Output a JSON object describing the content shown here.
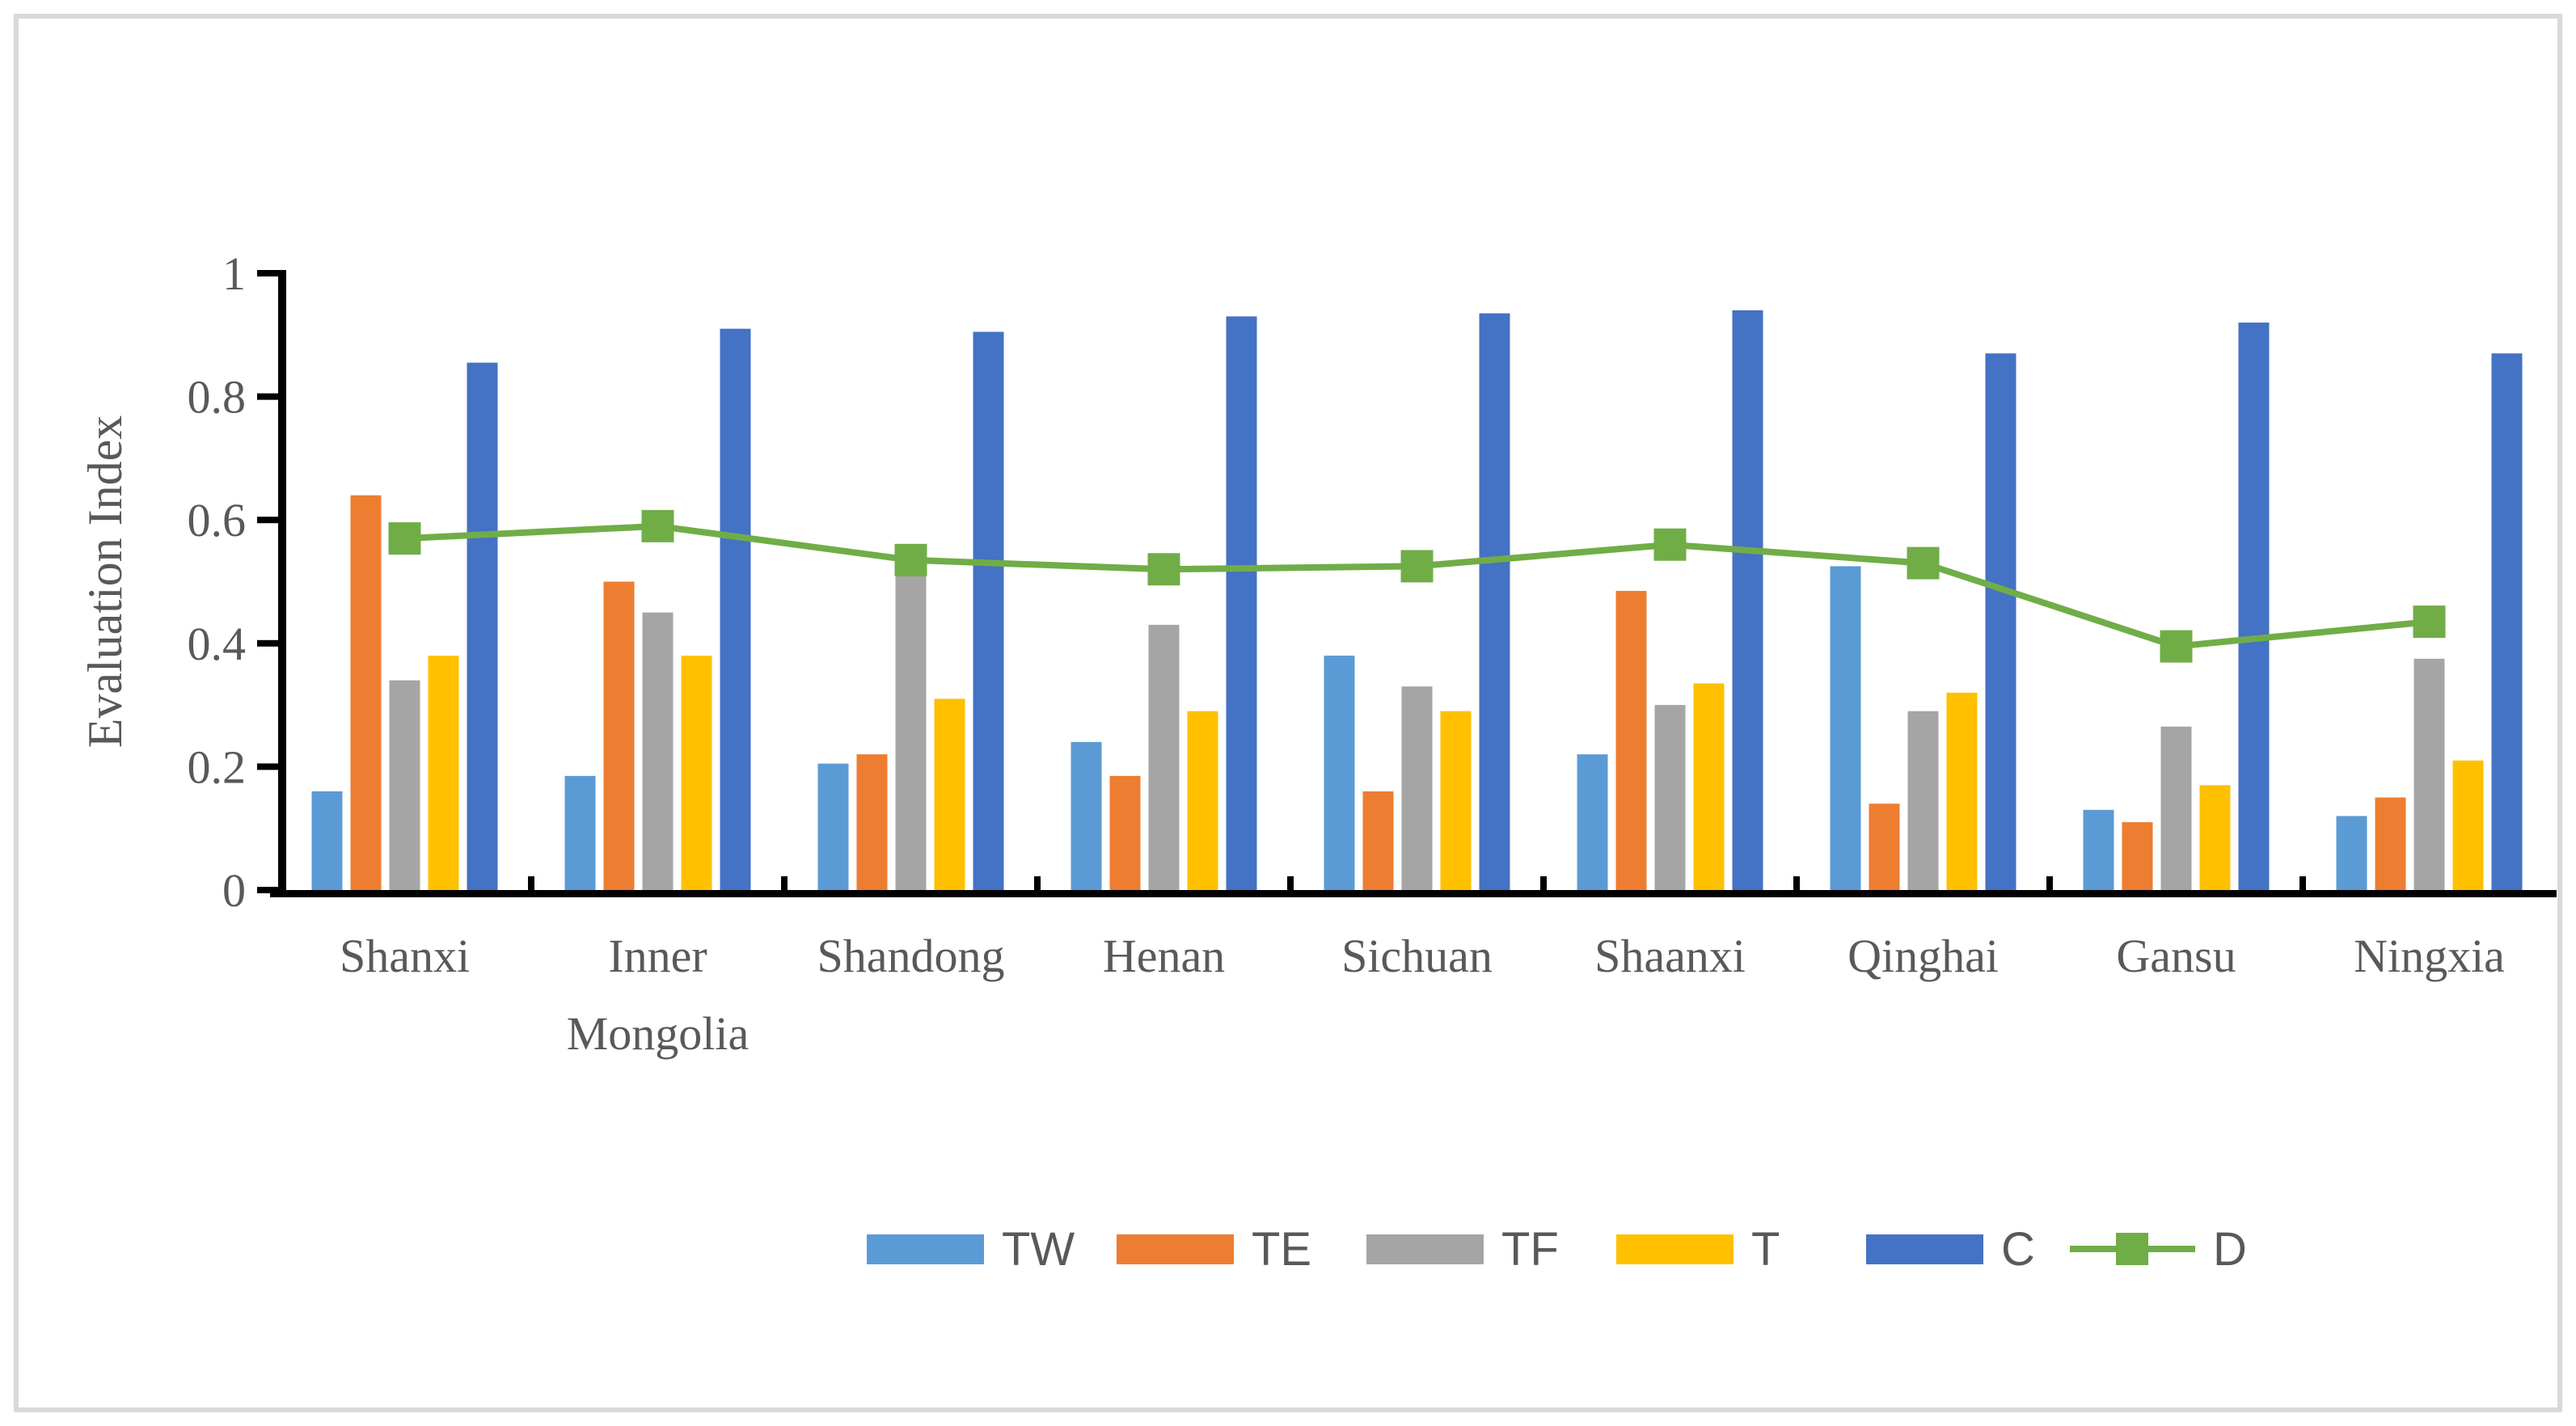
{
  "figure": {
    "background": "#FFFFFF",
    "border_color": "#D9D9D9"
  },
  "chart_data": {
    "type": "bar",
    "subtype": "grouped-bars-with-line-overlay",
    "title": "",
    "xlabel": "",
    "ylabel": "Evaluation Index",
    "ylim": [
      0,
      1
    ],
    "y_ticks": [
      "0",
      "0.2",
      "0.4",
      "0.6",
      "0.8",
      "1"
    ],
    "grid": false,
    "legend_position": "bottom-center",
    "axis_color": "#000000",
    "text_color": "#595959",
    "categories": [
      "Shanxi",
      "Inner Mongolia",
      "Shandong",
      "Henan",
      "Sichuan",
      "Shaanxi",
      "Qinghai",
      "Gansu",
      "Ningxia"
    ],
    "series": [
      {
        "name": "TW",
        "type": "bar",
        "color": "#5B9BD5",
        "values": [
          0.16,
          0.185,
          0.205,
          0.24,
          0.38,
          0.22,
          0.525,
          0.13,
          0.12
        ]
      },
      {
        "name": "TE",
        "type": "bar",
        "color": "#ED7D31",
        "values": [
          0.64,
          0.5,
          0.22,
          0.185,
          0.16,
          0.485,
          0.14,
          0.11,
          0.15
        ]
      },
      {
        "name": "TF",
        "type": "bar",
        "color": "#A5A5A5",
        "values": [
          0.34,
          0.45,
          0.51,
          0.43,
          0.33,
          0.3,
          0.29,
          0.265,
          0.375
        ]
      },
      {
        "name": "T",
        "type": "bar",
        "color": "#FFC000",
        "values": [
          0.38,
          0.38,
          0.31,
          0.29,
          0.29,
          0.335,
          0.32,
          0.17,
          0.21
        ]
      },
      {
        "name": "C",
        "type": "bar",
        "color": "#4472C4",
        "values": [
          0.855,
          0.91,
          0.905,
          0.93,
          0.935,
          0.94,
          0.87,
          0.92,
          0.87
        ]
      },
      {
        "name": "D",
        "type": "line",
        "color": "#70AD47",
        "marker": "square",
        "values": [
          0.57,
          0.59,
          0.535,
          0.52,
          0.525,
          0.56,
          0.53,
          0.395,
          0.435
        ]
      }
    ]
  }
}
